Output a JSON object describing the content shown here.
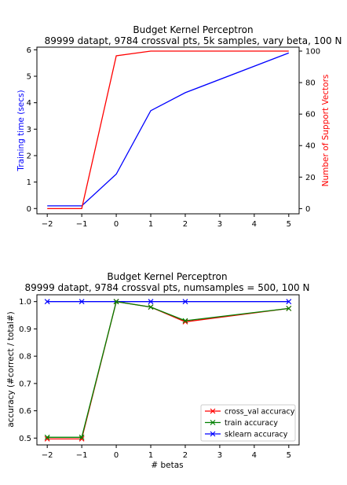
{
  "chart_data": [
    {
      "type": "line",
      "title": "Budget Kernel Perceptron",
      "subtitle": "89999 datapt, 9784 crossval pts, 5k samples, vary beta, 100 N",
      "xlabel": "",
      "ylabel": "Training time (secs)",
      "ylabel_right": "Number of Support Vectors",
      "xlim": [
        -2.3,
        5.3
      ],
      "ylim": [
        -0.2,
        6.1
      ],
      "ylim_right": [
        -3.3,
        102.5
      ],
      "xticks": [
        -2,
        -1,
        0,
        1,
        2,
        3,
        4,
        5
      ],
      "yticks": [
        0,
        1,
        2,
        3,
        4,
        5,
        6
      ],
      "yticks_right": [
        0,
        20,
        40,
        60,
        80,
        100
      ],
      "grid": false,
      "series": [
        {
          "name": "",
          "axis": "left",
          "color": "#0000ff",
          "x": [
            -2,
            -1,
            0,
            1,
            2,
            5
          ],
          "y": [
            0.1,
            0.1,
            1.3,
            3.7,
            4.38,
            5.88
          ]
        },
        {
          "name": "",
          "axis": "right",
          "color": "#ff0000",
          "x": [
            -2,
            -1,
            0,
            1,
            2,
            5
          ],
          "y": [
            0,
            0,
            97,
            100,
            100,
            100
          ]
        }
      ]
    },
    {
      "type": "line",
      "title": "Budget Kernel Perceptron",
      "subtitle": "89999 datapt, 9784 crossval pts, numsamples = 500, 100 N",
      "xlabel": "# betas",
      "ylabel": "accuracy (#correct / total#)",
      "xlim": [
        -2.3,
        5.3
      ],
      "ylim": [
        0.475,
        1.025
      ],
      "xticks": [
        -2,
        -1,
        0,
        1,
        2,
        3,
        4,
        5
      ],
      "yticks": [
        0.5,
        0.6,
        0.7,
        0.8,
        0.9,
        1.0
      ],
      "ytick_labels": [
        "0.5",
        "0.6",
        "0.7",
        "0.8",
        "0.9",
        "1.0"
      ],
      "grid": false,
      "legend": "lower-right",
      "series": [
        {
          "name": "cross_val accuracy",
          "color": "#ff0000",
          "marker": "x",
          "x": [
            -2,
            -1,
            0,
            1,
            2,
            5
          ],
          "y": [
            0.497,
            0.497,
            1.0,
            0.98,
            0.926,
            0.975
          ]
        },
        {
          "name": "train accuracy",
          "color": "#008000",
          "marker": "x",
          "x": [
            -2,
            -1,
            0,
            1,
            2,
            5
          ],
          "y": [
            0.503,
            0.503,
            1.0,
            0.98,
            0.93,
            0.975
          ]
        },
        {
          "name": "sklearn accuracy",
          "color": "#0000ff",
          "marker": "x",
          "x": [
            -2,
            -1,
            0,
            1,
            2,
            5
          ],
          "y": [
            1.0,
            1.0,
            1.0,
            1.0,
            1.0,
            1.0
          ]
        }
      ]
    }
  ]
}
